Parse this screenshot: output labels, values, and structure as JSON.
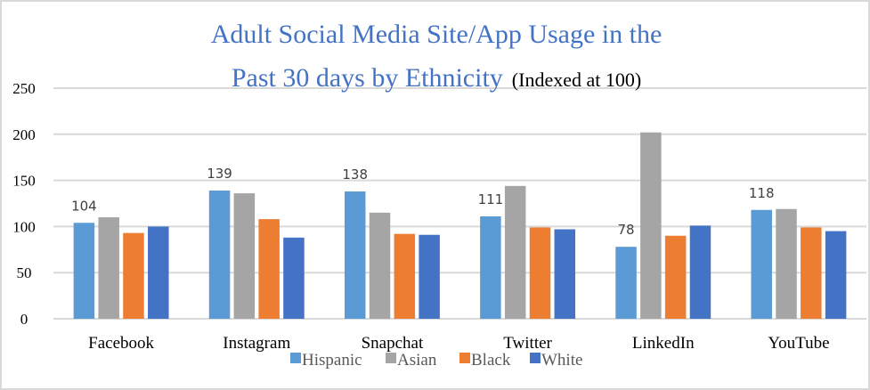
{
  "chart_data": {
    "type": "bar",
    "title": "Adult Social Media Site/App Usage in the",
    "title_line2": "Past 30 days by Ethnicity",
    "subtitle": "(Indexed at 100)",
    "xlabel": "",
    "ylabel": "",
    "ylim": [
      0,
      250
    ],
    "yticks": [
      0,
      50,
      100,
      150,
      200,
      250
    ],
    "grid": true,
    "legend_position": "bottom",
    "categories": [
      "Facebook",
      "Instagram",
      "Snapchat",
      "Twitter",
      "LinkedIn",
      "YouTube"
    ],
    "series": [
      {
        "name": "Hispanic",
        "color": "#5b9bd5",
        "values": [
          104,
          139,
          138,
          111,
          78,
          118
        ]
      },
      {
        "name": "Asian",
        "color": "#a5a5a5",
        "values": [
          110,
          136,
          115,
          144,
          202,
          119
        ]
      },
      {
        "name": "Black",
        "color": "#ed7d31",
        "values": [
          93,
          108,
          92,
          99,
          90,
          99
        ]
      },
      {
        "name": "White",
        "color": "#4472c4",
        "values": [
          100,
          88,
          91,
          97,
          101,
          95
        ]
      }
    ],
    "data_labels": [
      {
        "series": "Hispanic",
        "category": "Facebook",
        "text": "104"
      },
      {
        "series": "Hispanic",
        "category": "Instagram",
        "text": "139"
      },
      {
        "series": "Hispanic",
        "category": "Snapchat",
        "text": "138"
      },
      {
        "series": "Hispanic",
        "category": "Twitter",
        "text": "111"
      },
      {
        "series": "Hispanic",
        "category": "LinkedIn",
        "text": "78"
      },
      {
        "series": "Hispanic",
        "category": "YouTube",
        "text": "118"
      }
    ]
  }
}
